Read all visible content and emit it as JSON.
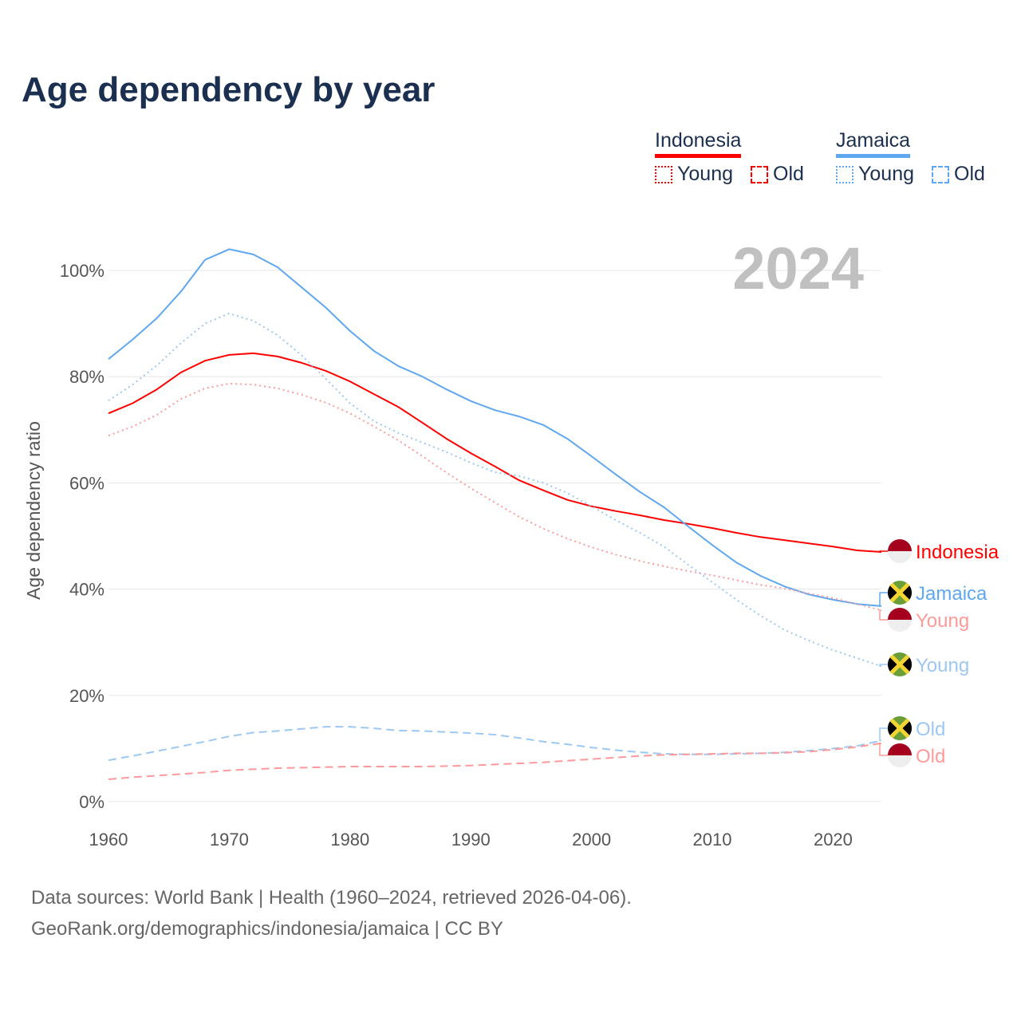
{
  "title": "Age dependency by year",
  "legend": {
    "countries": [
      {
        "name": "Indonesia",
        "color": "#ff0000",
        "young_label": "Young",
        "old_label": "Old"
      },
      {
        "name": "Jamaica",
        "color": "#5fa8ef",
        "young_label": "Young",
        "old_label": "Old"
      }
    ]
  },
  "footer": {
    "line1": "Data sources: World Bank | Health (1960–2024, retrieved 2026-04-06).",
    "line2": "GeoRank.org/demographics/indonesia/jamaica | CC BY"
  },
  "chart_data": {
    "type": "line",
    "title": "Age dependency by year",
    "year_label": "2024",
    "xlabel": "",
    "ylabel": "Age dependency ratio",
    "xlim": [
      1960,
      2024
    ],
    "ylim": [
      0,
      105
    ],
    "x_ticks": [
      "1960",
      "1970",
      "1980",
      "1990",
      "2000",
      "2010",
      "2020"
    ],
    "y_ticks": [
      "0%",
      "20%",
      "40%",
      "60%",
      "80%",
      "100%"
    ],
    "grid": true,
    "x": [
      1960,
      1962,
      1964,
      1966,
      1968,
      1970,
      1972,
      1974,
      1976,
      1978,
      1980,
      1982,
      1984,
      1986,
      1988,
      1990,
      1992,
      1994,
      1996,
      1998,
      2000,
      2002,
      2004,
      2006,
      2008,
      2010,
      2012,
      2014,
      2016,
      2018,
      2020,
      2022,
      2024
    ],
    "series": [
      {
        "name": "Indonesia",
        "end_label": "Indonesia",
        "country": "indonesia",
        "color": "#ff0000",
        "style": "solid",
        "values": [
          73.1,
          75,
          77.6,
          80.8,
          83,
          84.1,
          84.4,
          83.8,
          82.6,
          81.1,
          79.1,
          76.7,
          74.3,
          71.3,
          68.3,
          65.6,
          63.1,
          60.5,
          58.6,
          56.8,
          55.6,
          54.7,
          53.9,
          53,
          52.3,
          51.5,
          50.6,
          49.8,
          49.2,
          48.6,
          48,
          47.3,
          47
        ]
      },
      {
        "name": "Jamaica",
        "end_label": "Jamaica",
        "country": "jamaica",
        "color": "#5fa8ef",
        "style": "solid",
        "values": [
          83.3,
          87,
          91,
          96,
          102,
          104,
          103,
          100.6,
          96.8,
          93,
          88.6,
          84.8,
          82,
          80,
          77.6,
          75.4,
          73.7,
          72.5,
          70.9,
          68.3,
          65,
          61.6,
          58.3,
          55.4,
          51.8,
          48.3,
          45,
          42.5,
          40.5,
          39,
          38,
          37.2,
          36.8
        ]
      },
      {
        "name": "Indonesia Young",
        "end_label": "Young",
        "country": "indonesia",
        "color": "#ff9a9a",
        "style": "dotted",
        "values": [
          68.9,
          70.6,
          72.8,
          75.8,
          77.8,
          78.7,
          78.5,
          77.8,
          76.6,
          75.1,
          73.1,
          70.6,
          68,
          65,
          61.9,
          59,
          56.3,
          53.6,
          51.4,
          49.5,
          47.9,
          46.5,
          45.3,
          44.3,
          43.4,
          42.6,
          41.7,
          40.8,
          40.1,
          39.2,
          38.3,
          37.2,
          36
        ]
      },
      {
        "name": "Jamaica Young",
        "end_label": "Young",
        "country": "jamaica",
        "color": "#9dc8f2",
        "style": "dotted",
        "values": [
          75.5,
          78.5,
          82.1,
          86.3,
          90,
          91.9,
          90.5,
          87.8,
          84,
          79.6,
          75,
          71.6,
          69.4,
          67.6,
          65.8,
          63.8,
          62,
          61.3,
          60,
          58.1,
          55.6,
          53,
          50.6,
          48,
          44.6,
          41.3,
          38,
          35,
          32.3,
          30.3,
          28.5,
          27,
          25.5
        ]
      },
      {
        "name": "Jamaica Old",
        "end_label": "Old",
        "country": "jamaica",
        "color": "#9dc8f2",
        "style": "dashed",
        "values": [
          7.8,
          8.6,
          9.5,
          10.4,
          11.3,
          12.3,
          13,
          13.3,
          13.7,
          14.1,
          14.1,
          13.8,
          13.4,
          13.3,
          13.1,
          12.9,
          12.6,
          12,
          11.3,
          10.8,
          10.2,
          9.7,
          9.3,
          9,
          8.9,
          8.9,
          9,
          9.1,
          9.3,
          9.6,
          10,
          10.5,
          11.5
        ]
      },
      {
        "name": "Indonesia Old",
        "end_label": "Old",
        "country": "indonesia",
        "color": "#ff9a9a",
        "style": "dashed",
        "values": [
          4.2,
          4.6,
          4.9,
          5.2,
          5.5,
          5.9,
          6.1,
          6.3,
          6.4,
          6.5,
          6.6,
          6.6,
          6.6,
          6.6,
          6.7,
          6.8,
          7,
          7.2,
          7.4,
          7.7,
          8,
          8.3,
          8.6,
          8.8,
          8.9,
          9,
          9.1,
          9.1,
          9.2,
          9.4,
          9.8,
          10.3,
          11
        ]
      }
    ]
  }
}
